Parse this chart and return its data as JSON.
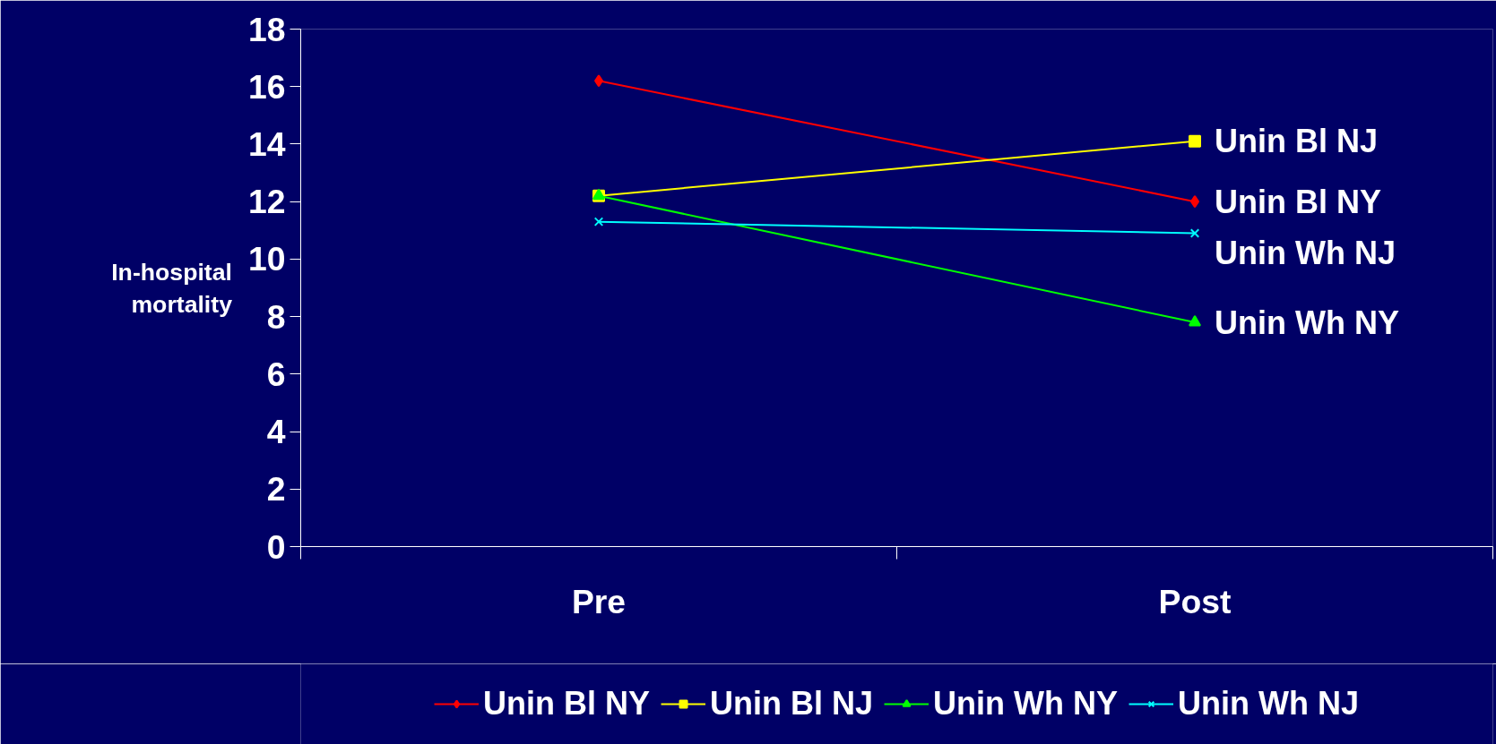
{
  "chart_data": {
    "type": "line",
    "ylabel": "In-hospital mortality",
    "categories": [
      "Pre",
      "Post"
    ],
    "series": [
      {
        "name": "Unin Bl NY",
        "color": "#ff0000",
        "marker": "diamond",
        "values": [
          16.2,
          12.0
        ]
      },
      {
        "name": "Unin Bl NJ",
        "color": "#ffff00",
        "marker": "square",
        "values": [
          12.2,
          14.1
        ]
      },
      {
        "name": "Unin Wh NY",
        "color": "#00ff00",
        "marker": "triangle",
        "values": [
          12.2,
          7.8
        ]
      },
      {
        "name": "Unin Wh NJ",
        "color": "#00ffff",
        "marker": "cross",
        "values": [
          11.3,
          10.9
        ]
      }
    ],
    "ylim": [
      0,
      18
    ],
    "yticks": [
      0,
      2,
      4,
      6,
      8,
      10,
      12,
      14,
      16,
      18
    ],
    "grid": false,
    "legend": "bottom",
    "line_style": "solid"
  }
}
